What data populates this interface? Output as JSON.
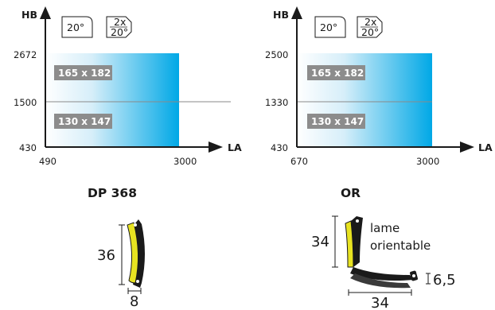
{
  "charts": [
    {
      "id": "left",
      "y_label": "HB",
      "x_label": "LA",
      "icons": {
        "single": "20°",
        "double_top": "2x",
        "double_bottom": "20°"
      },
      "y_ticks": [
        "2672",
        "1500",
        "430"
      ],
      "x_ticks": [
        "490",
        "3000"
      ],
      "boxes": [
        "165 x 182",
        "130 x 147"
      ],
      "model": "DP 368",
      "blade": {
        "icon": "curved-blade-icon",
        "height_label": "36",
        "width_label": "8"
      }
    },
    {
      "id": "right",
      "y_label": "HB",
      "x_label": "LA",
      "icons": {
        "single": "20°",
        "double_top": "2x",
        "double_bottom": "20°"
      },
      "y_ticks": [
        "2500",
        "1330",
        "430"
      ],
      "x_ticks": [
        "670",
        "3000"
      ],
      "boxes": [
        "165 x 182",
        "130 x 147"
      ],
      "model": "OR",
      "blade": {
        "icon": "angled-blade-icon",
        "height_label": "34",
        "width_label": "34",
        "thickness_label": "6,5",
        "note_line1": "lame",
        "note_line2": "orientable"
      }
    }
  ],
  "colors": {
    "gradient_start": "#ffffff",
    "gradient_end": "#00a8e6",
    "box_fill": "#8c8c8c",
    "blade_yellow": "#e8e321",
    "axis": "#1a1a1a"
  }
}
